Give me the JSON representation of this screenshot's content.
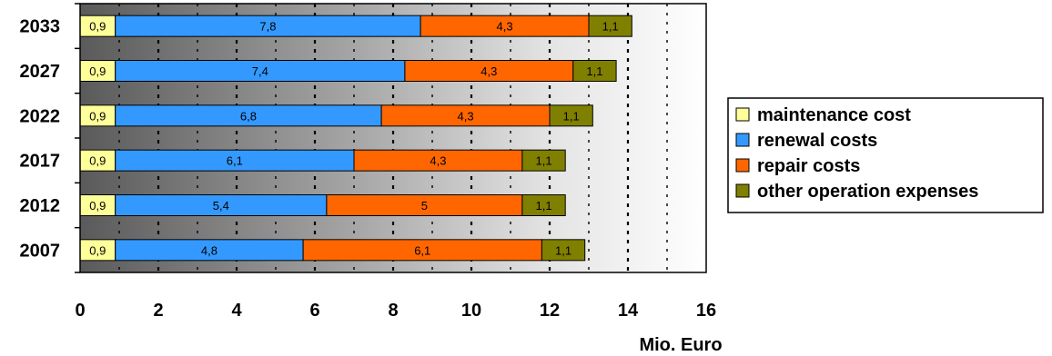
{
  "chart_data": {
    "type": "bar",
    "orientation": "horizontal",
    "stacked": true,
    "categories": [
      "2033",
      "2027",
      "2022",
      "2017",
      "2012",
      "2007"
    ],
    "series": [
      {
        "name": "maintenance cost",
        "color": "#ffff99",
        "values": [
          0.9,
          0.9,
          0.9,
          0.9,
          0.9,
          0.9
        ],
        "labels": [
          "0,9",
          "0,9",
          "0,9",
          "0,9",
          "0,9",
          "0,9"
        ]
      },
      {
        "name": "renewal costs",
        "color": "#3399ff",
        "values": [
          7.8,
          7.4,
          6.8,
          6.1,
          5.4,
          4.8
        ],
        "labels": [
          "7,8",
          "7,4",
          "6,8",
          "6,1",
          "5,4",
          "4,8"
        ]
      },
      {
        "name": "repair costs",
        "color": "#ff6600",
        "values": [
          4.3,
          4.3,
          4.3,
          4.3,
          5,
          6.1
        ],
        "labels": [
          "4,3",
          "4,3",
          "4,3",
          "4,3",
          "5",
          "6,1"
        ]
      },
      {
        "name": "other operation expenses",
        "color": "#808000",
        "values": [
          1.1,
          1.1,
          1.1,
          1.1,
          1.1,
          1.1
        ],
        "labels": [
          "1,1",
          "1,1",
          "1,1",
          "1,1",
          "1,1",
          "1,1"
        ]
      }
    ],
    "x_ticks": [
      "0",
      "2",
      "4",
      "6",
      "8",
      "10",
      "12",
      "14",
      "16"
    ],
    "xlim": [
      0,
      16
    ],
    "xlabel": "Mio. Euro",
    "grid": "vertical dotted",
    "legend_position": "right"
  }
}
